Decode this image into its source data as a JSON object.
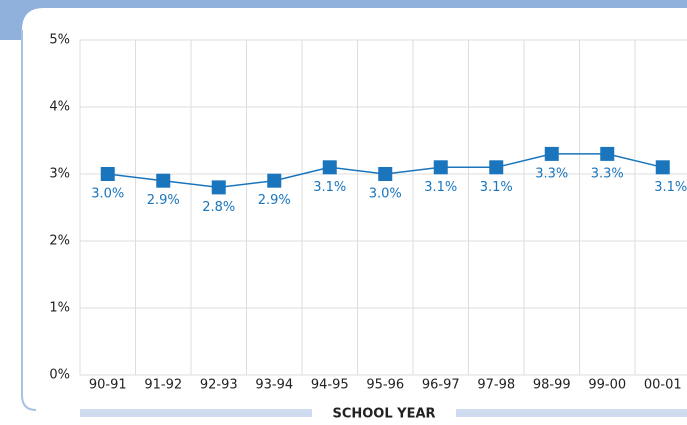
{
  "chart_data": {
    "type": "line",
    "categories": [
      "90-91",
      "91-92",
      "92-93",
      "93-94",
      "94-95",
      "95-96",
      "96-97",
      "97-98",
      "98-99",
      "99-00",
      "00-01"
    ],
    "series": [
      {
        "color": "#1a75bc",
        "values": [
          3.0,
          2.9,
          2.8,
          2.9,
          3.1,
          3.0,
          3.1,
          3.1,
          3.3,
          3.3,
          3.1
        ],
        "value_labels": [
          "3.0%",
          "2.9%",
          "2.8%",
          "2.9%",
          "3.1%",
          "3.0%",
          "3.1%",
          "3.1%",
          "3.3%",
          "3.3%",
          "3.1%"
        ]
      }
    ],
    "ylim": [
      0,
      5
    ],
    "yticks": [
      {
        "value": 0,
        "label": "0%"
      },
      {
        "value": 1,
        "label": "1%"
      },
      {
        "value": 2,
        "label": "2%"
      },
      {
        "value": 3,
        "label": "3%"
      },
      {
        "value": 4,
        "label": "4%"
      },
      {
        "value": 5,
        "label": "5%"
      }
    ],
    "x_label": "SCHOOL YEAR",
    "grid": true
  }
}
